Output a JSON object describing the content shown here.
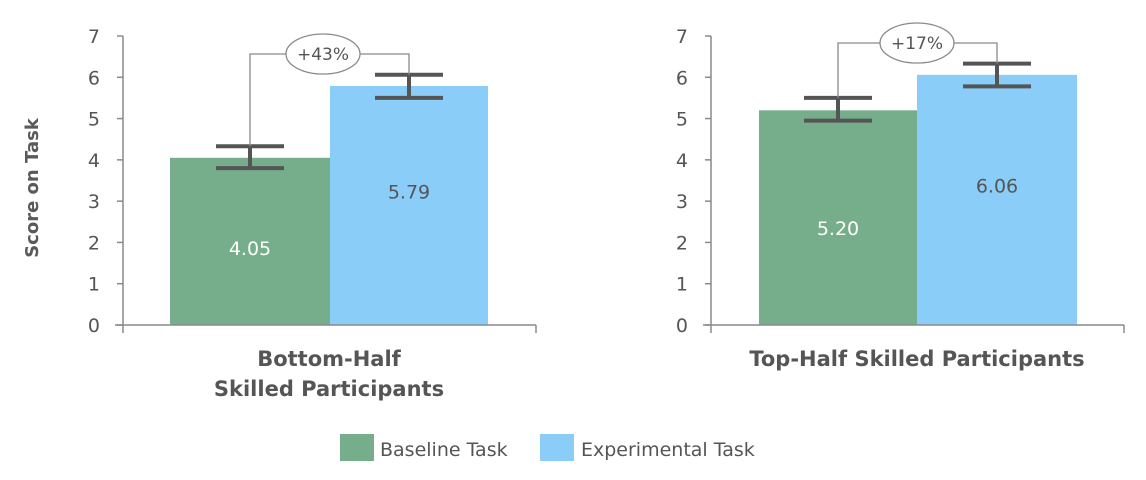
{
  "chart_data": [
    {
      "type": "bar",
      "title": "",
      "xlabel": "Bottom-Half Skilled Participants",
      "xlabel_lines": [
        "Bottom-Half",
        "Skilled Participants"
      ],
      "ylabel": "Score on Task",
      "ylim": [
        0,
        7
      ],
      "yticks": [
        0,
        1,
        2,
        3,
        4,
        5,
        6,
        7
      ],
      "grid": false,
      "series": [
        {
          "name": "Baseline Task",
          "value": 4.05,
          "label": "4.05",
          "error_low": 3.8,
          "error_high": 4.33,
          "color": "#76ae8c"
        },
        {
          "name": "Experimental Task",
          "value": 5.79,
          "label": "5.79",
          "error_low": 5.5,
          "error_high": 6.06,
          "color": "#89cdf8"
        }
      ],
      "annotation": "+43%"
    },
    {
      "type": "bar",
      "title": "",
      "xlabel": "Top-Half Skilled Participants",
      "xlabel_lines": [
        "Top-Half Skilled Participants"
      ],
      "ylabel": "",
      "ylim": [
        0,
        7
      ],
      "yticks": [
        0,
        1,
        2,
        3,
        4,
        5,
        6,
        7
      ],
      "grid": false,
      "series": [
        {
          "name": "Baseline Task",
          "value": 5.2,
          "label": "5.20",
          "error_low": 4.95,
          "error_high": 5.5,
          "color": "#76ae8c"
        },
        {
          "name": "Experimental Task",
          "value": 6.06,
          "label": "6.06",
          "error_low": 5.78,
          "error_high": 6.33,
          "color": "#89cdf8"
        }
      ],
      "annotation": "+17%"
    }
  ],
  "legend": {
    "position": "bottom",
    "items": [
      {
        "label": "Baseline Task",
        "color": "#76ae8c"
      },
      {
        "label": "Experimental Task",
        "color": "#89cdf8"
      }
    ]
  },
  "colors": {
    "axis": "#8a8a8a",
    "error_bar": "#555555",
    "bracket": "#8a8a8a",
    "baseline_value_text": "#ffffff",
    "experimental_value_text": "#555555"
  }
}
